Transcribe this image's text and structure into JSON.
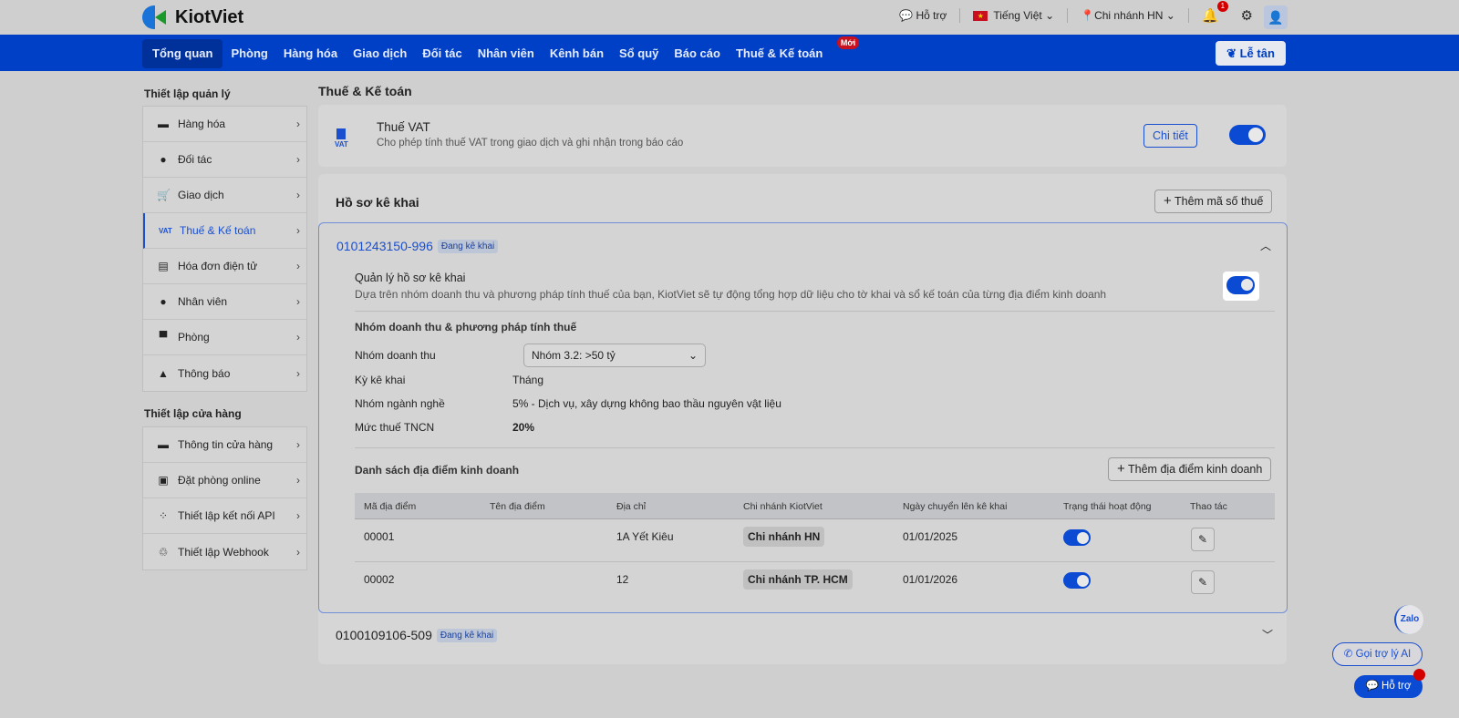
{
  "brand": {
    "name": "KiotViet"
  },
  "topbar": {
    "support": "Hỗ trợ",
    "language": "Tiếng Việt",
    "branch": "Chi nhánh HN",
    "notifications_count": "1"
  },
  "nav": {
    "items": [
      "Tổng quan",
      "Phòng",
      "Hàng hóa",
      "Giao dịch",
      "Đối tác",
      "Nhân viên",
      "Kênh bán",
      "Sổ quỹ",
      "Báo cáo",
      "Thuế & Kế toán"
    ],
    "active": "Tổng quan",
    "new_badge": "Mới",
    "reception": "Lễ tân"
  },
  "sidebar": {
    "group1_title": "Thiết lập quản lý",
    "group1": [
      {
        "label": "Hàng hóa",
        "icon": "box-icon"
      },
      {
        "label": "Đối tác",
        "icon": "person-icon"
      },
      {
        "label": "Giao dịch",
        "icon": "cart-icon"
      },
      {
        "label": "Thuế & Kế toán",
        "icon": "vat-icon"
      },
      {
        "label": "Hóa đơn điện tử",
        "icon": "invoice-icon"
      },
      {
        "label": "Nhân viên",
        "icon": "staff-icon"
      },
      {
        "label": "Phòng",
        "icon": "bed-icon"
      },
      {
        "label": "Thông báo",
        "icon": "bell-icon"
      }
    ],
    "group2_title": "Thiết lập cửa hàng",
    "group2": [
      {
        "label": "Thông tin cửa hàng",
        "icon": "store-icon"
      },
      {
        "label": "Đặt phòng online",
        "icon": "calendar-icon"
      },
      {
        "label": "Thiết lập kết nối API",
        "icon": "api-icon"
      },
      {
        "label": "Thiết lập Webhook",
        "icon": "webhook-icon"
      }
    ]
  },
  "main": {
    "title": "Thuế & Kế toán",
    "vat": {
      "icon_text": "VAT",
      "title": "Thuế VAT",
      "desc": "Cho phép tính thuế VAT trong giao dịch và ghi nhận trong báo cáo",
      "detail": "Chi tiết",
      "enabled": true
    },
    "profiles": {
      "title": "Hồ sơ kê khai",
      "add_tax": "Thêm mã số thuế"
    },
    "profile1": {
      "tax_id": "0101243150-996",
      "status": "Đang kê khai",
      "manage_title": "Quản lý hồ sơ kê khai",
      "manage_desc": "Dựa trên nhóm doanh thu và phương pháp tính thuế của bạn, KiotViet sẽ tự động tổng hợp dữ liệu cho tờ khai và sổ kế toán của từng địa điểm kinh doanh",
      "manage_enabled": true,
      "section_title": "Nhóm doanh thu & phương pháp tính thuế",
      "revenue_label": "Nhóm doanh thu",
      "revenue_value": "Nhóm 3.2: >50 tỷ",
      "period_label": "Kỳ kê khai",
      "period_value": "Tháng",
      "industry_label": "Nhóm ngành nghề",
      "industry_value": "5% - Dịch vụ, xây dựng không bao thầu nguyên vật liệu",
      "pit_label": "Mức thuế TNCN",
      "pit_value": "20%",
      "locations_title": "Danh sách địa điểm kinh doanh",
      "add_location": "Thêm địa điểm kinh doanh",
      "columns": [
        "Mã địa điểm",
        "Tên địa điểm",
        "Địa chỉ",
        "Chi nhánh KiotViet",
        "Ngày chuyển lên kê khai",
        "Trạng thái hoạt động",
        "Thao tác"
      ],
      "rows": [
        {
          "code": "00001",
          "name": "",
          "address": "1A Yết Kiêu",
          "branch": "Chi nhánh HN",
          "date": "01/01/2025",
          "active": true
        },
        {
          "code": "00002",
          "name": "",
          "address": "12",
          "branch": "Chi nhánh TP. HCM",
          "date": "01/01/2026",
          "active": true
        }
      ]
    },
    "profile2": {
      "tax_id": "0100109106-509",
      "status": "Đang kê khai"
    }
  },
  "floating": {
    "zalo": "Zalo",
    "ai_call": "Gọi trợ lý AI",
    "support": "Hỗ trợ"
  },
  "colors": {
    "brand_blue": "#0040c6",
    "accent": "#1a4fd0",
    "badge_red": "#c8101e"
  }
}
